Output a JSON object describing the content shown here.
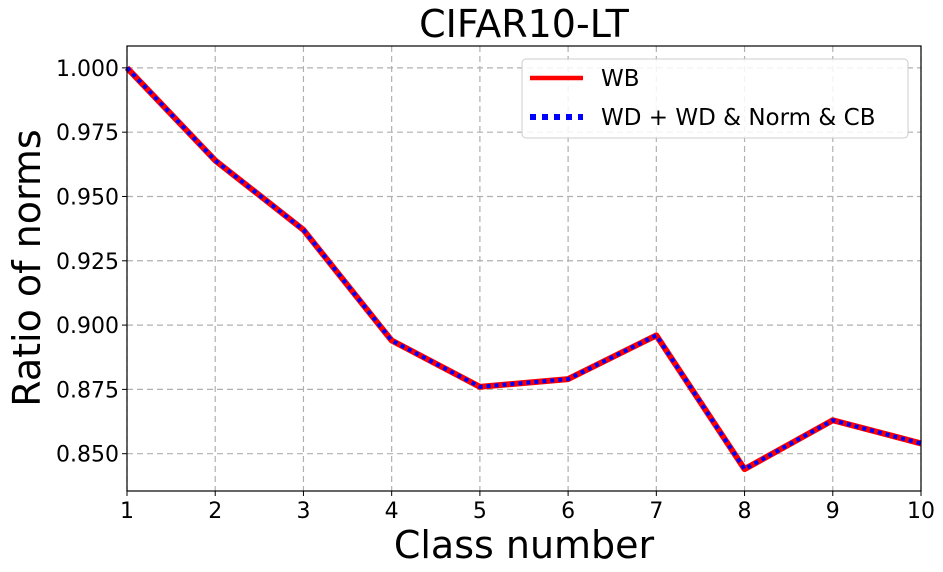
{
  "chart_data": {
    "type": "line",
    "title": "CIFAR10-LT",
    "xlabel": "Class number",
    "ylabel": "Ratio of norms",
    "x": [
      1,
      2,
      3,
      4,
      5,
      6,
      7,
      8,
      9,
      10
    ],
    "xlim": [
      1,
      10
    ],
    "ylim": [
      0.8355,
      1.0085
    ],
    "xticks": [
      "1",
      "2",
      "3",
      "4",
      "5",
      "6",
      "7",
      "8",
      "9",
      "10"
    ],
    "yticks": [
      "0.850",
      "0.875",
      "0.900",
      "0.925",
      "0.950",
      "0.975",
      "1.000"
    ],
    "grid": true,
    "legend_position": "top-right",
    "series": [
      {
        "name": "WB",
        "color": "#ff0000",
        "style": "solid",
        "values": [
          1.0,
          0.964,
          0.937,
          0.894,
          0.876,
          0.879,
          0.896,
          0.844,
          0.863,
          0.854
        ]
      },
      {
        "name": "WD + WD & Norm & CB",
        "color": "#0000ff",
        "style": "dotted",
        "values": [
          1.0,
          0.964,
          0.937,
          0.894,
          0.876,
          0.879,
          0.896,
          0.844,
          0.863,
          0.854
        ]
      }
    ]
  }
}
